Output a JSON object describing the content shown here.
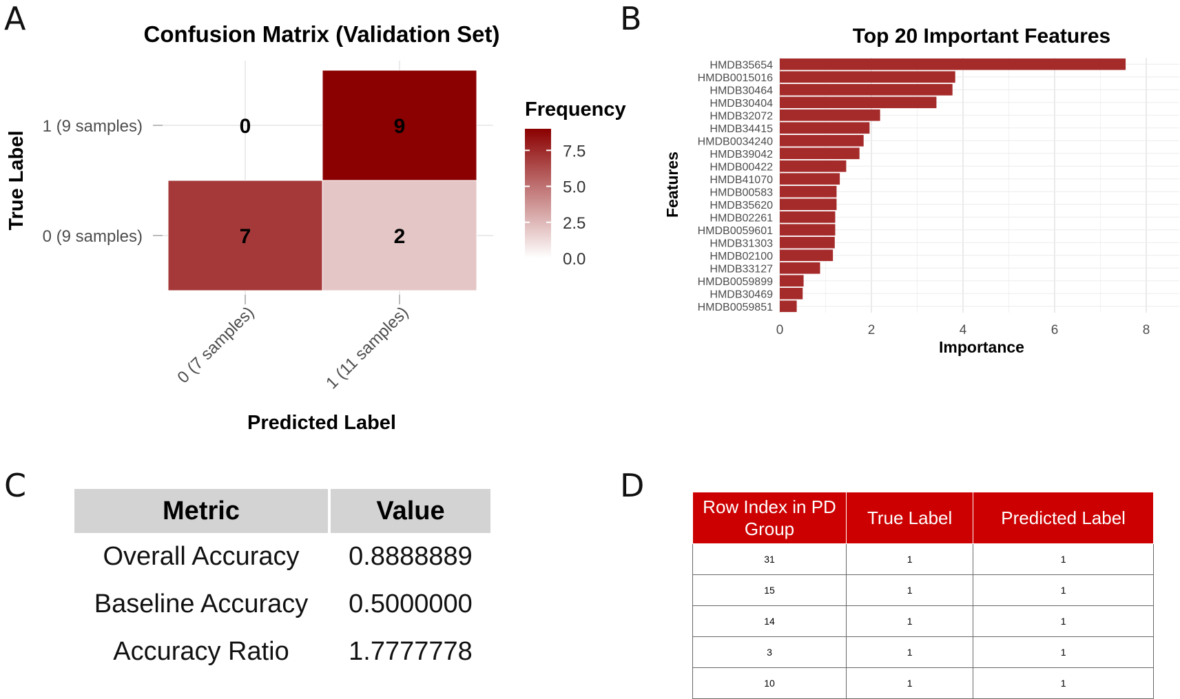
{
  "panels": {
    "a": "A",
    "b": "B",
    "c": "C",
    "d": "D"
  },
  "chart_data": [
    {
      "type": "heatmap",
      "title": "Confusion Matrix (Validation Set)",
      "xlabel": "Predicted Label",
      "ylabel": "True Label",
      "x_categories": [
        "0 (7 samples)",
        "1 (11 samples)"
      ],
      "y_categories": [
        "0 (9 samples)",
        "1 (9 samples)"
      ],
      "cells": [
        {
          "x": 0,
          "y": 0,
          "value": 7
        },
        {
          "x": 1,
          "y": 0,
          "value": 2
        },
        {
          "x": 0,
          "y": 1,
          "value": 0
        },
        {
          "x": 1,
          "y": 1,
          "value": 9
        }
      ],
      "legend": {
        "title": "Frequency",
        "min": 0,
        "max": 9,
        "ticks": [
          "0.0",
          "2.5",
          "5.0",
          "7.5"
        ],
        "tick_values": [
          0,
          2.5,
          5,
          7.5
        ]
      },
      "colors": {
        "low": "#ffffff",
        "high": "#8b0000"
      }
    },
    {
      "type": "bar",
      "orientation": "horizontal",
      "title": "Top 20 Important Features",
      "xlabel": "Importance",
      "ylabel": "Features",
      "xlim": [
        0,
        8
      ],
      "xticks": [
        0,
        2,
        4,
        6,
        8
      ],
      "categories": [
        "HMDB35654",
        "HMDB0015016",
        "HMDB30464",
        "HMDB30404",
        "HMDB32072",
        "HMDB34415",
        "HMDB0034240",
        "HMDB39042",
        "HMDB00422",
        "HMDB41070",
        "HMDB00583",
        "HMDB35620",
        "HMDB02261",
        "HMDB0059601",
        "HMDB31303",
        "HMDB02100",
        "HMDB33127",
        "HMDB0059899",
        "HMDB30469",
        "HMDB0059851"
      ],
      "values": [
        7.55,
        3.83,
        3.77,
        3.42,
        2.19,
        1.96,
        1.83,
        1.74,
        1.45,
        1.31,
        1.24,
        1.24,
        1.21,
        1.21,
        1.2,
        1.16,
        0.88,
        0.52,
        0.5,
        0.37
      ],
      "bar_color": "#a52a2a"
    },
    {
      "type": "table",
      "columns": [
        "Metric",
        "Value"
      ],
      "rows": [
        [
          "Overall Accuracy",
          "0.8888889"
        ],
        [
          "Baseline Accuracy",
          "0.5000000"
        ],
        [
          "Accuracy Ratio",
          "1.7777778"
        ]
      ]
    },
    {
      "type": "table",
      "columns": [
        "Row Index in PD Group",
        "True Label",
        "Predicted Label"
      ],
      "rows": [
        [
          "31",
          "1",
          "1"
        ],
        [
          "15",
          "1",
          "1"
        ],
        [
          "14",
          "1",
          "1"
        ],
        [
          "3",
          "1",
          "1"
        ],
        [
          "10",
          "1",
          "1"
        ]
      ],
      "header_color": "#cc0000"
    }
  ]
}
